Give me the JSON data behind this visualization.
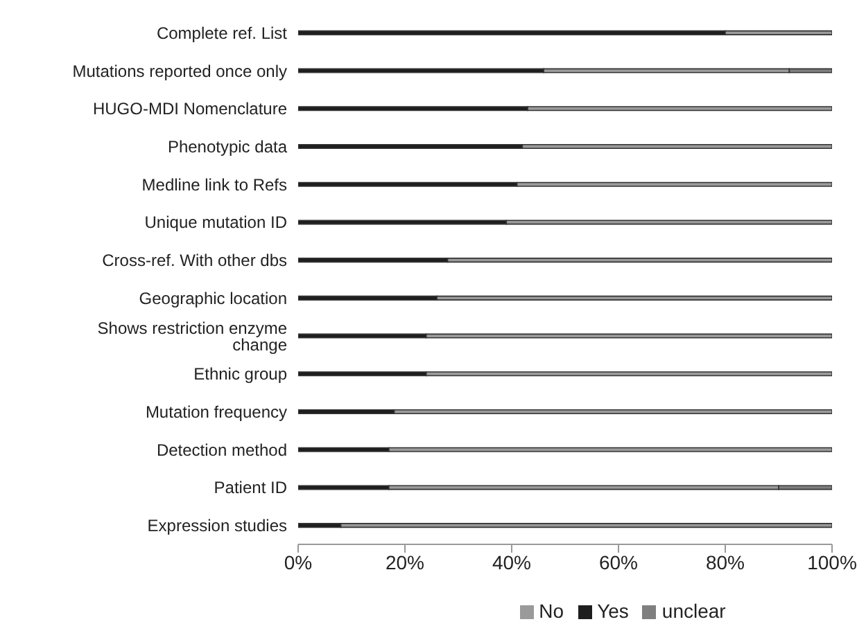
{
  "chart_data": {
    "type": "bar",
    "orientation": "horizontal",
    "stacked": true,
    "categories": [
      "Complete ref. List",
      "Mutations reported once only",
      "HUGO-MDI Nomenclature",
      "Phenotypic data",
      "Medline link to Refs",
      "Unique mutation ID",
      "Cross-ref. With other dbs",
      "Geographic location",
      "Shows restriction enzyme change",
      "Ethnic group",
      "Mutation frequency",
      "Detection method",
      "Patient ID",
      "Expression studies"
    ],
    "series": [
      {
        "name": "Yes",
        "color": "#1e1e1e",
        "values": [
          80,
          46,
          43,
          42,
          41,
          39,
          28,
          26,
          24,
          24,
          18,
          17,
          17,
          8
        ]
      },
      {
        "name": "No",
        "color": "#9a9a9a",
        "values": [
          20,
          46,
          57,
          58,
          59,
          61,
          72,
          74,
          76,
          76,
          82,
          83,
          73,
          92
        ]
      },
      {
        "name": "unclear",
        "color": "#7f7f7f",
        "values": [
          0,
          8,
          0,
          0,
          0,
          0,
          0,
          0,
          0,
          0,
          0,
          0,
          10,
          0
        ]
      }
    ],
    "xlim": [
      0,
      100
    ],
    "xticks": [
      {
        "value": 0,
        "label": "0%"
      },
      {
        "value": 20,
        "label": "20%"
      },
      {
        "value": 40,
        "label": "40%"
      },
      {
        "value": 60,
        "label": "60%"
      },
      {
        "value": 80,
        "label": "80%"
      },
      {
        "value": 100,
        "label": "100%"
      }
    ],
    "grid": false,
    "legend": "bottom"
  }
}
